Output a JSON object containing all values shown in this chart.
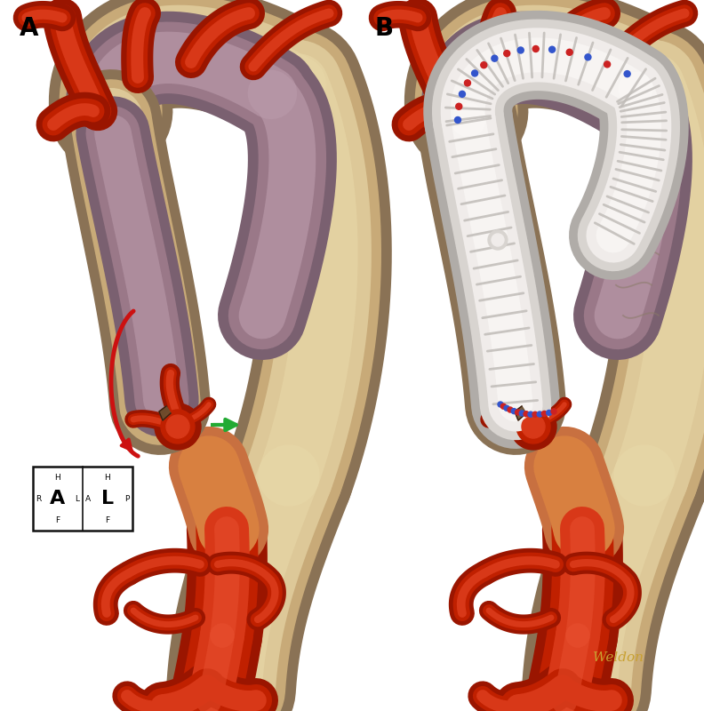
{
  "background_color": "#ffffff",
  "label_A": "A",
  "label_B": "B",
  "label_fontsize": 20,
  "label_fontweight": "bold",
  "signature_text": "Weldon",
  "signature_color": "#c8a030",
  "aorta_outer_dark": "#8a7255",
  "aorta_mid": "#c8aa78",
  "aorta_light": "#ddc898",
  "aorta_inner_light": "#e8d8a8",
  "false_lumen_outer": "#7a6070",
  "false_lumen_mid": "#9a7888",
  "false_lumen_inner": "#b898a8",
  "vessel_dark": "#9a1500",
  "vessel_mid": "#c02000",
  "vessel_bright": "#d83818",
  "vessel_highlight": "#e85030",
  "graft_shadow": "#b0aca8",
  "graft_mid": "#d8d4d0",
  "graft_light": "#f0ecea",
  "graft_highlight": "#faf8f6",
  "graft_ridge": "#c0bcb8",
  "suture_blue": "#3355cc",
  "suture_red": "#cc2222",
  "arrow_red": "#cc1111",
  "arrow_green": "#22aa33",
  "orient_color": "#111111"
}
